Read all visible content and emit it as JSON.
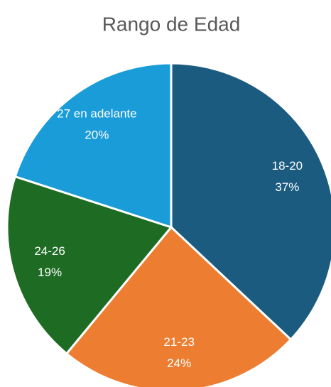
{
  "chart_data": {
    "type": "pie",
    "title": "Rango de Edad",
    "categories": [
      "18-20",
      "21-23",
      "24-26",
      "27 en adelante"
    ],
    "values": [
      37,
      24,
      19,
      20
    ],
    "value_labels": [
      "37%",
      "24%",
      "19%",
      "20%"
    ],
    "colors": [
      "#1b5b80",
      "#ed7d31",
      "#1e6b24",
      "#1a9cd8"
    ]
  }
}
